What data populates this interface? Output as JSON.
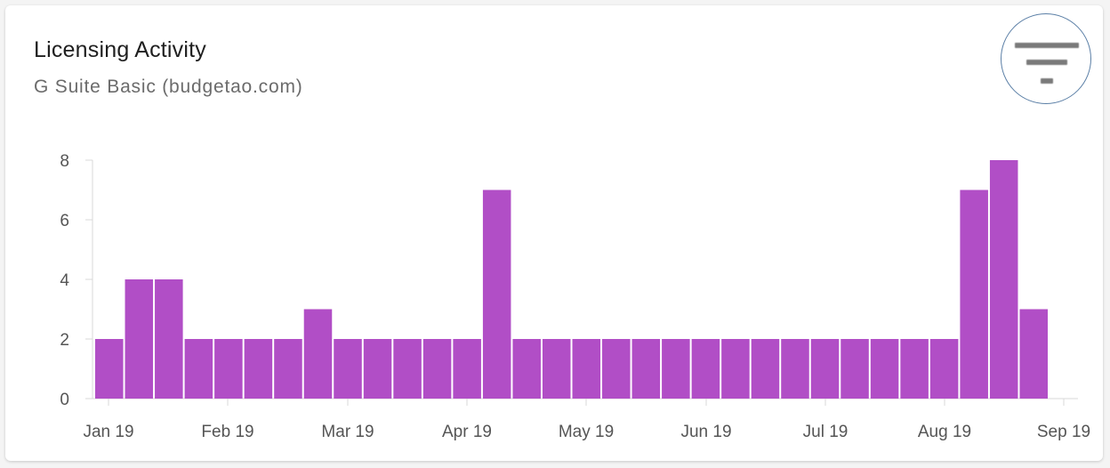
{
  "header": {
    "title": "Licensing Activity",
    "subtitle": "G Suite Basic (budgetao.com)"
  },
  "filter_button": {
    "icon": "filter-icon"
  },
  "colors": {
    "bar": "#b14ec6",
    "axis": "#d9d9d9",
    "tick_text": "#555555"
  },
  "chart_data": {
    "type": "bar",
    "title": "Licensing Activity",
    "subtitle": "G Suite Basic (budgetao.com)",
    "xlabel": "",
    "ylabel": "",
    "ylim": [
      0,
      8
    ],
    "y_ticks": [
      0,
      2,
      4,
      6,
      8
    ],
    "x_axis_type": "date",
    "x_tick_labels": [
      "Jan 19",
      "Feb 19",
      "Mar 19",
      "Apr 19",
      "May 19",
      "Jun 19",
      "Jul 19",
      "Aug 19",
      "Sep 19"
    ],
    "grid": false,
    "legend": "none",
    "values": [
      2,
      4,
      4,
      2,
      2,
      2,
      2,
      3,
      2,
      2,
      2,
      2,
      2,
      7,
      2,
      2,
      2,
      2,
      2,
      2,
      2,
      2,
      2,
      2,
      2,
      2,
      2,
      2,
      2,
      7,
      8,
      3
    ]
  }
}
